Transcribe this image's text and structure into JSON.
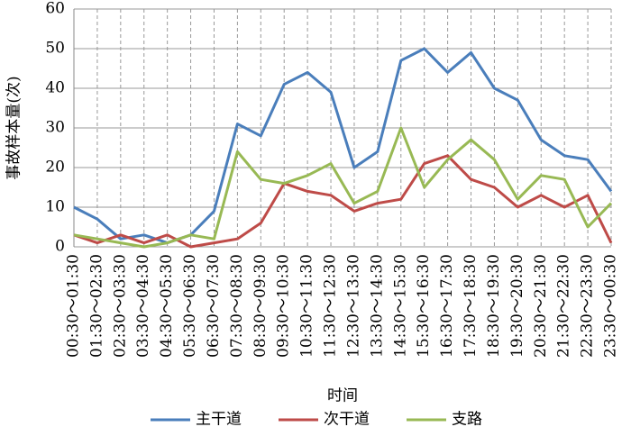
{
  "chart_data": {
    "type": "line",
    "y_label": "事故样本量(次)",
    "x_label": "时间",
    "categories": [
      "00:30～01:30",
      "01:30～02:30",
      "02:30～03:30",
      "03:30～04:30",
      "04:30～05:30",
      "05:30～06:30",
      "06:30～07:30",
      "07:30～08:30",
      "08:30～09:30",
      "09:30～10:30",
      "10:30～11:30",
      "11:30～12:30",
      "12:30～13:30",
      "13:30～14:30",
      "14:30～15:30",
      "15:30～16:30",
      "16:30～17:30",
      "17:30～18:30",
      "18:30～19:30",
      "19:30～20:30",
      "20:30～21:30",
      "21:30～22:30",
      "22:30～23:30",
      "23:30～00:30"
    ],
    "series": [
      {
        "name": "主干道",
        "color": "#4a7ebb",
        "values": [
          10,
          7,
          2,
          3,
          1,
          3,
          9,
          31,
          28,
          41,
          44,
          39,
          20,
          24,
          47,
          50,
          44,
          49,
          40,
          37,
          27,
          23,
          22,
          14
        ]
      },
      {
        "name": "次干道",
        "color": "#be4b48",
        "values": [
          3,
          1,
          3,
          1,
          3,
          0,
          1,
          2,
          6,
          16,
          14,
          13,
          9,
          11,
          12,
          21,
          23,
          17,
          15,
          10,
          13,
          10,
          13,
          1
        ]
      },
      {
        "name": "支路",
        "color": "#98b954",
        "values": [
          3,
          2,
          1,
          0,
          1,
          3,
          2,
          24,
          17,
          16,
          18,
          21,
          11,
          14,
          30,
          15,
          22,
          27,
          22,
          12,
          18,
          17,
          5,
          11
        ]
      }
    ],
    "ylim": [
      0,
      60
    ],
    "yticks": [
      0,
      10,
      20,
      30,
      40,
      50,
      60
    ],
    "grid": true,
    "legend": "bottom"
  }
}
